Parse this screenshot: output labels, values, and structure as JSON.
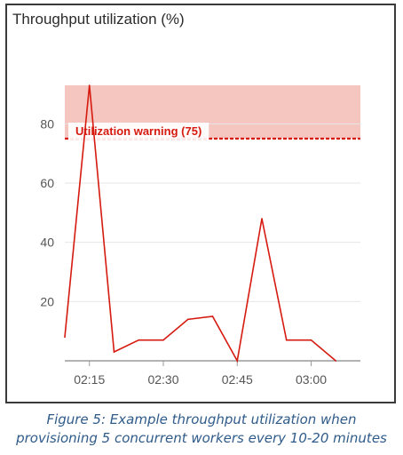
{
  "chart_data": {
    "type": "line",
    "title": "Throughput utilization (%)",
    "xlabel": "",
    "ylabel": "",
    "x_ticks": [
      "02:15",
      "02:30",
      "02:45",
      "03:00"
    ],
    "y_ticks": [
      20,
      40,
      60,
      80
    ],
    "ylim": [
      0,
      93
    ],
    "xlim_minutes": [
      0,
      60
    ],
    "series": [
      {
        "x": [
          0,
          5,
          10,
          15,
          20,
          25,
          30,
          35,
          40,
          45,
          50,
          55,
          60
        ],
        "values": [
          8,
          93,
          3,
          7,
          7,
          14,
          15,
          0,
          48,
          7,
          7,
          0,
          null
        ],
        "color": "#d61a0f"
      }
    ],
    "threshold": {
      "label": "Utilization warning (75)",
      "value": 75,
      "color": "#d61a0f",
      "band_color": "#f5c5bf"
    },
    "grid": true,
    "legend": "none"
  },
  "caption": {
    "line1": "Figure 5: Example throughput utilization when",
    "line2": "provisioning 5 concurrent workers every 10-20 minutes"
  }
}
